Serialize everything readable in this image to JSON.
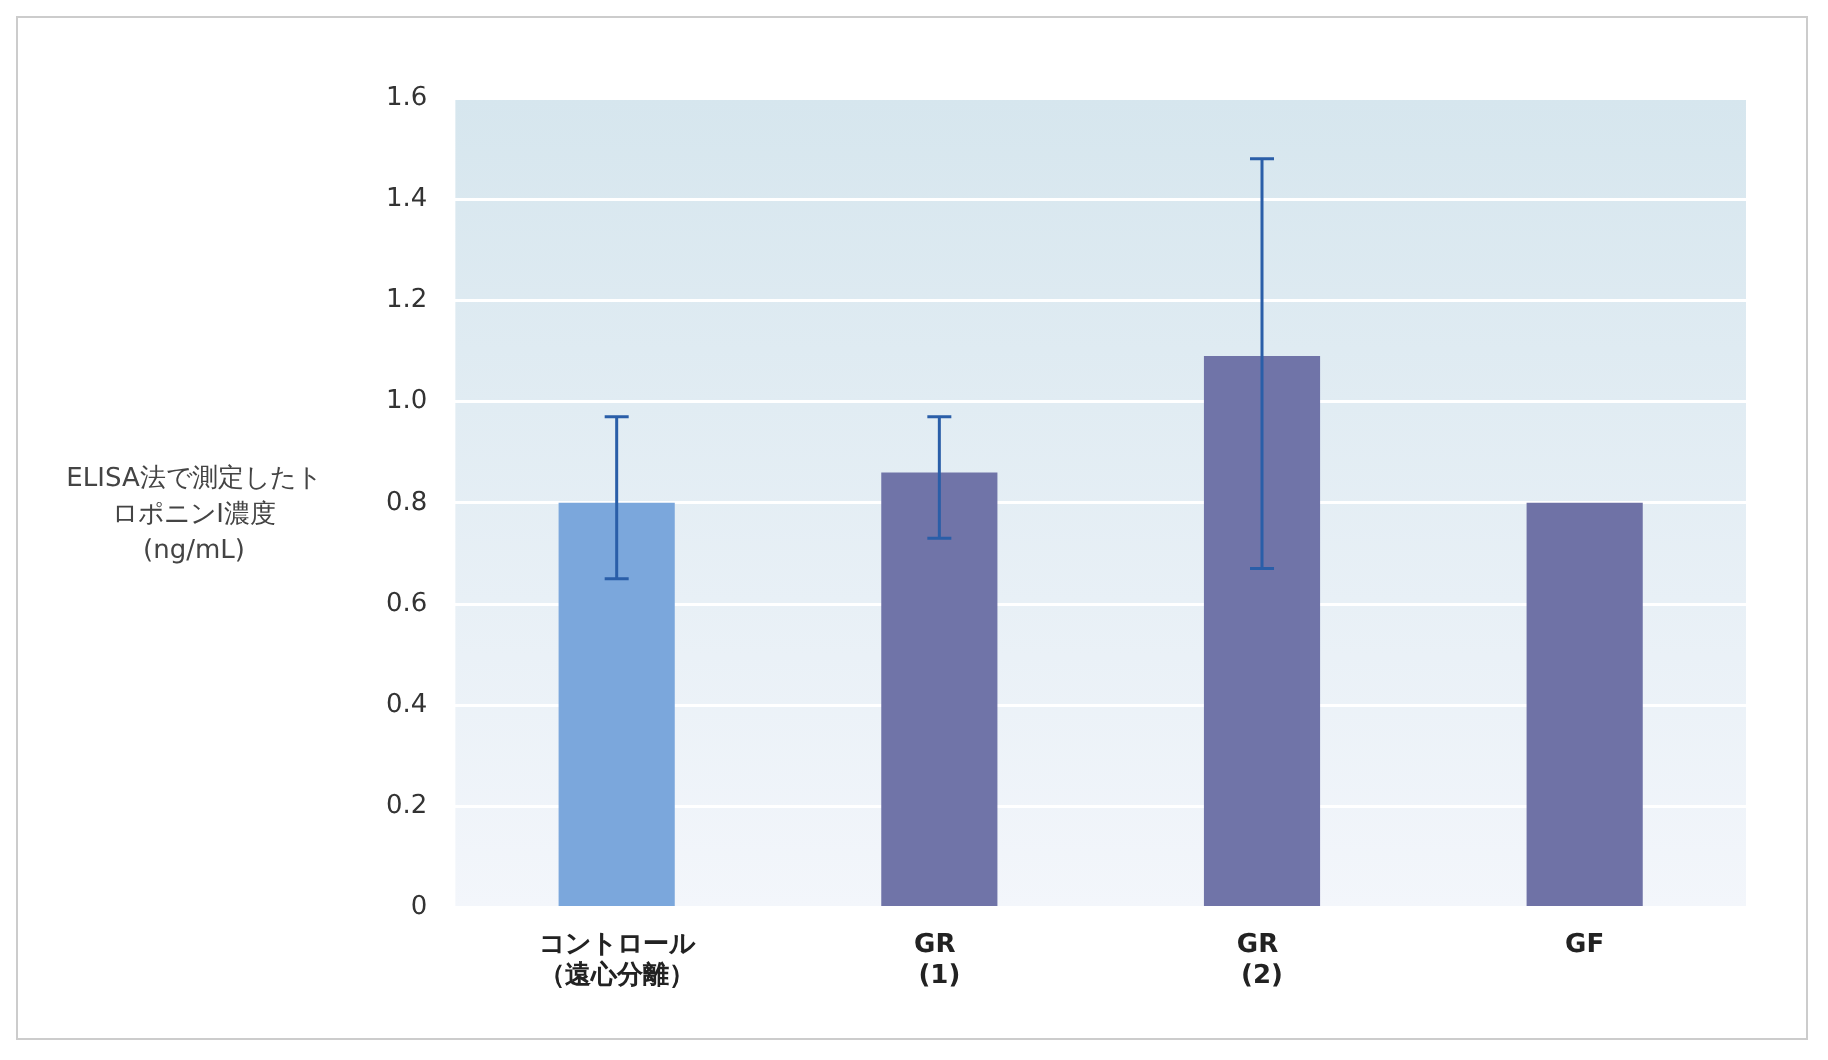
{
  "chart_data": {
    "type": "bar",
    "ylabel": "ELISA法で測定したトロポニンI濃度(ng/mL)",
    "categories": [
      "コントロール（遠心分離）",
      "GR (1)",
      "GR (2)",
      "GF"
    ],
    "values": [
      0.8,
      0.86,
      1.09,
      0.8
    ],
    "errors": [
      [
        0.65,
        0.97
      ],
      [
        0.73,
        0.97
      ],
      [
        0.67,
        1.48
      ],
      null
    ],
    "colors": [
      "#7ba7dc",
      "#7074a8",
      "#7074a8",
      "#6f72a6"
    ],
    "ylim": [
      0,
      1.6
    ],
    "yticks": [
      0,
      0.2,
      0.4,
      0.6,
      0.8,
      {
        "value": 1,
        "label": "1.0"
      },
      1.2,
      1.4,
      1.6
    ],
    "grid": "y"
  }
}
